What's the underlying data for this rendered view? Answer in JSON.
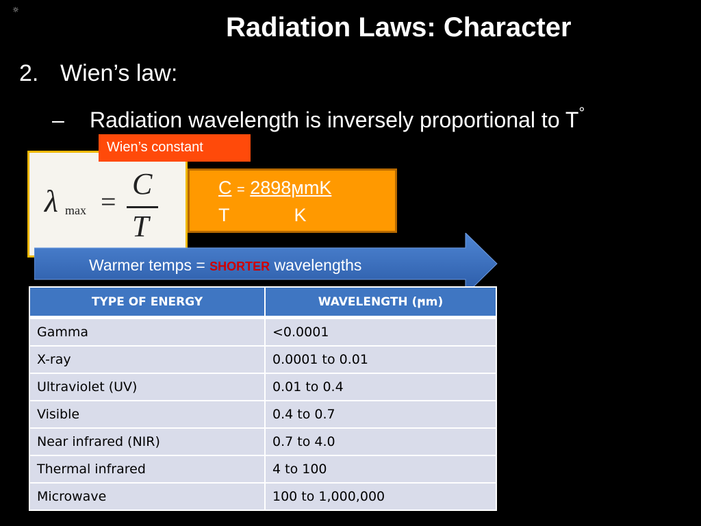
{
  "slide": {
    "title": "Radiation Laws: Character",
    "corner_glyph": "☼",
    "bullet1_number": "2.",
    "bullet1_text": "Wien’s law:",
    "bullet2_dash": "–",
    "bullet2_text": "Radiation wavelength is inversely proportional to T",
    "bullet2_degree": "°"
  },
  "formula": {
    "lambda": "λ",
    "lambda_sub": "max",
    "equals": "=",
    "numerator": "C",
    "denominator": "T"
  },
  "constant_box": {
    "label": "Wien’s constant",
    "c_symbol": "C",
    "equals": "=",
    "value": "2898ϻmK",
    "t_symbol": "T",
    "k_symbol": "K"
  },
  "arrow_banner": {
    "text_before": "Warmer temps = ",
    "highlight": "SHORTER",
    "text_after": " wavelengths"
  },
  "table": {
    "headers": [
      "TYPE OF ENERGY",
      "WAVELENGTH (ϻm)"
    ],
    "rows": [
      [
        "Gamma",
        "<0.0001"
      ],
      [
        "X-ray",
        "0.0001 to 0.01"
      ],
      [
        "Ultraviolet (UV)",
        "0.01 to 0.4"
      ],
      [
        "Visible",
        "0.4 to 0.7"
      ],
      [
        "Near infrared (NIR)",
        "0.7 to 4.0"
      ],
      [
        "Thermal infrared",
        "4 to 100"
      ],
      [
        "Microwave",
        "100 to 1,000,000"
      ]
    ]
  },
  "colors": {
    "background": "#000000",
    "orange": "#ff9900",
    "label_red_orange": "#ff4a0a",
    "arrow_blue": "#3a70c0",
    "table_header": "#3f76c2",
    "table_cell": "#d9dcea",
    "highlight_red": "#d00000"
  }
}
